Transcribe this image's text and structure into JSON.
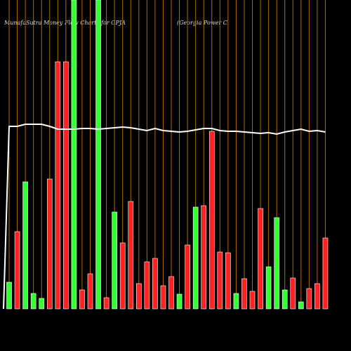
{
  "chart_data": {
    "type": "bar",
    "title": "MunafaSutra  Money Flow  Charts for GPJA",
    "subtitle": "(Georgia  Power C",
    "values": [
      38,
      110,
      181,
      22,
      15,
      185,
      352,
      352,
      440,
      27,
      50,
      440,
      16,
      138,
      94,
      153,
      36,
      67,
      72,
      33,
      46,
      21,
      91,
      145,
      147,
      253,
      81,
      80,
      22,
      43,
      25,
      143,
      60,
      130,
      27,
      44,
      10,
      29,
      36,
      101
    ],
    "colors": [
      "#3f3",
      "#f22",
      "#3f3",
      "#3f3",
      "#3f3",
      "#f22",
      "#f22",
      "#f22",
      "#3f3",
      "#f22",
      "#f22",
      "#3f3",
      "#f22",
      "#3f3",
      "#f22",
      "#f22",
      "#f22",
      "#f22",
      "#f22",
      "#f22",
      "#f22",
      "#3f3",
      "#f22",
      "#3f3",
      "#f22",
      "#f22",
      "#f22",
      "#f22",
      "#3f3",
      "#f22",
      "#f22",
      "#f22",
      "#3f3",
      "#3f3",
      "#3f3",
      "#f22",
      "#3f3",
      "#f22",
      "#f22",
      "#f22"
    ],
    "line": {
      "color": "#ffffff",
      "values": [
        260,
        260,
        263,
        263,
        263,
        260,
        256,
        256,
        256,
        257,
        257,
        256,
        257,
        258,
        259,
        258,
        256,
        254,
        257,
        254,
        253,
        252,
        253,
        255,
        257,
        257,
        254,
        253,
        253,
        252,
        251,
        250,
        251,
        249,
        252,
        254,
        256,
        253,
        254,
        252
      ]
    },
    "ylim": [
      0,
      440
    ],
    "grid_color": "#b26a00"
  }
}
